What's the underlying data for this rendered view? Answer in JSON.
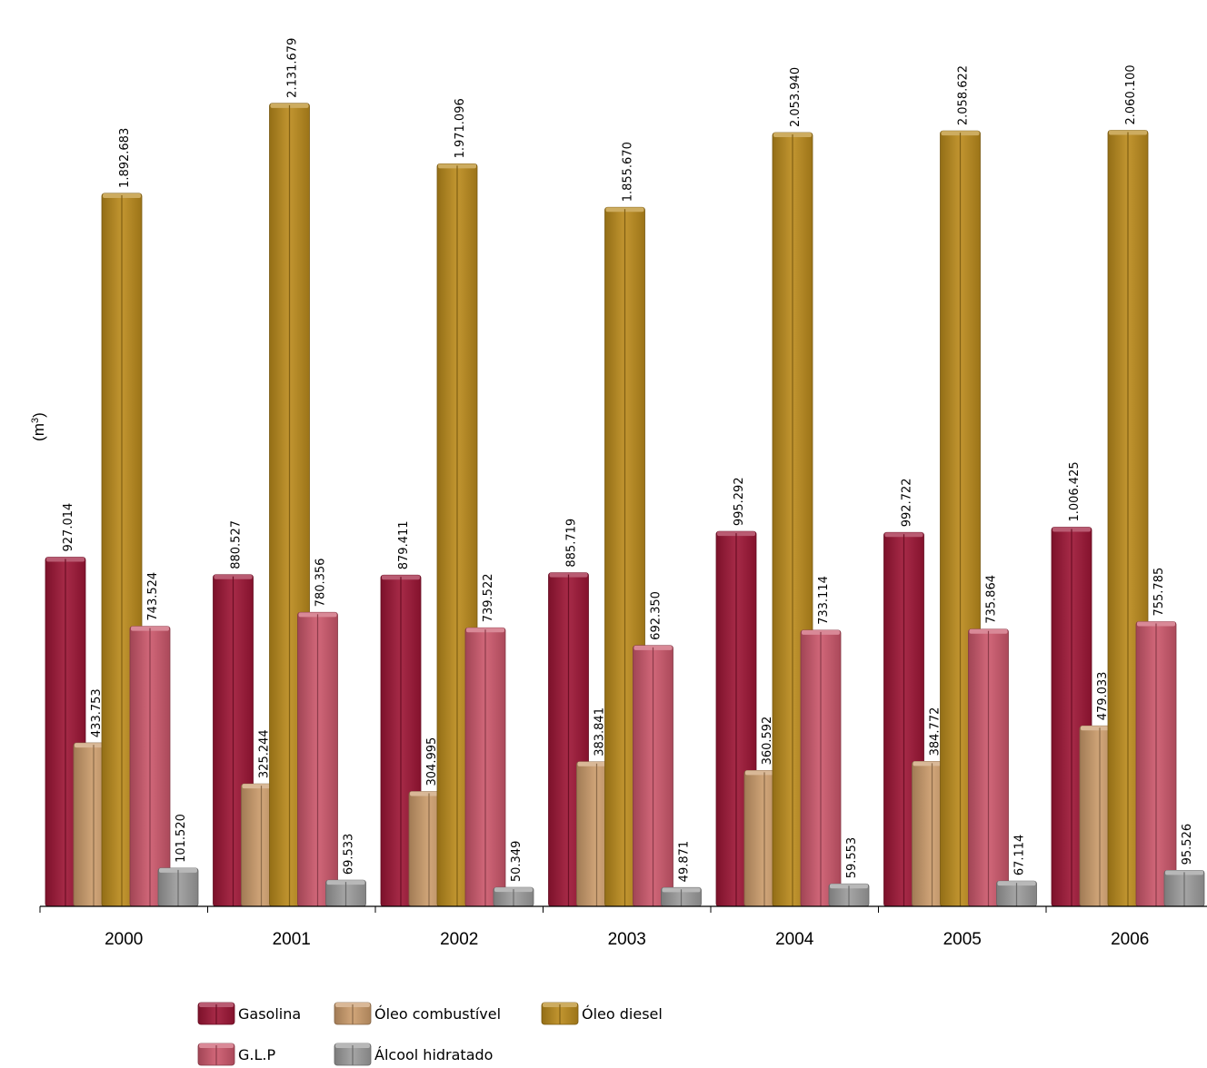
{
  "chart_data": {
    "type": "bar",
    "ylabel": "(m",
    "ylabel_sup": "3",
    "ylabel_close": ")",
    "categories": [
      "2000",
      "2001",
      "2002",
      "2003",
      "2004",
      "2005",
      "2006"
    ],
    "ylim": [
      0,
      2300000
    ],
    "grid": false,
    "legend_position": "bottom",
    "series": [
      {
        "name": "Gasolina",
        "color": "#9b1535",
        "values": [
          927014,
          880527,
          879411,
          885719,
          995292,
          992722,
          1006425
        ],
        "labels": [
          "927.014",
          "880.527",
          "879.411",
          "885.719",
          "995.292",
          "992.722",
          "1.006.425"
        ]
      },
      {
        "name": "Óleo combustível",
        "color": "#c99a6a",
        "values": [
          433753,
          325244,
          304995,
          383841,
          360592,
          384772,
          479033
        ],
        "labels": [
          "433.753",
          "325.244",
          "304.995",
          "383.841",
          "360.592",
          "384.772",
          "479.033"
        ]
      },
      {
        "name": "Óleo diesel",
        "color": "#b8891c",
        "values": [
          1892683,
          2131679,
          1971096,
          1855670,
          2053940,
          2058622,
          2060100
        ],
        "labels": [
          "1.892.683",
          "2.131.679",
          "1.971.096",
          "1.855.670",
          "2.053.940",
          "2.058.622",
          "2.060.100"
        ]
      },
      {
        "name": "G.L.P",
        "color": "#c9566a",
        "values": [
          743524,
          780356,
          739522,
          692350,
          733114,
          735864,
          755785
        ],
        "labels": [
          "743.524",
          "780.356",
          "739.522",
          "692.350",
          "733.114",
          "735.864",
          "755.785"
        ]
      },
      {
        "name": "Álcool hidratado",
        "color": "#9a9a9a",
        "values": [
          101520,
          69533,
          50349,
          49871,
          59553,
          67114,
          95526
        ],
        "labels": [
          "101.520",
          "69.533",
          "50.349",
          "49.871",
          "59.553",
          "67.114",
          "95.526"
        ]
      }
    ]
  }
}
